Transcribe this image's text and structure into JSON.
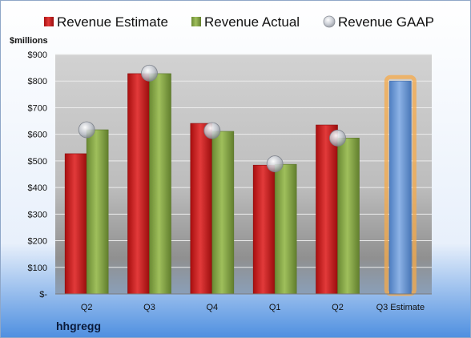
{
  "company": "hhgregg",
  "unit_label": "$millions",
  "colors": {
    "estimate": "#cc1a1a",
    "actual": "#86a646",
    "gaap": "#b8bcc4",
    "projection": "#6f9ad6",
    "projection_glow": "#f5a94a"
  },
  "chart_data": {
    "type": "bar",
    "categories": [
      "Q2",
      "Q3",
      "Q4",
      "Q1",
      "Q2",
      "Q3 Estimate"
    ],
    "series": [
      {
        "name": "Revenue Estimate",
        "values": [
          527,
          828,
          641,
          484,
          635,
          800
        ]
      },
      {
        "name": "Revenue Actual",
        "values": [
          617,
          828,
          611,
          487,
          586,
          null
        ]
      },
      {
        "name": "Revenue GAAP",
        "values": [
          617,
          830,
          614,
          489,
          586,
          null
        ]
      }
    ],
    "yticks": [
      "$-",
      "$100",
      "$200",
      "$300",
      "$400",
      "$500",
      "$600",
      "$700",
      "$800",
      "$900"
    ],
    "ylim": [
      0,
      900
    ],
    "grid": true,
    "legend_position": "top"
  }
}
